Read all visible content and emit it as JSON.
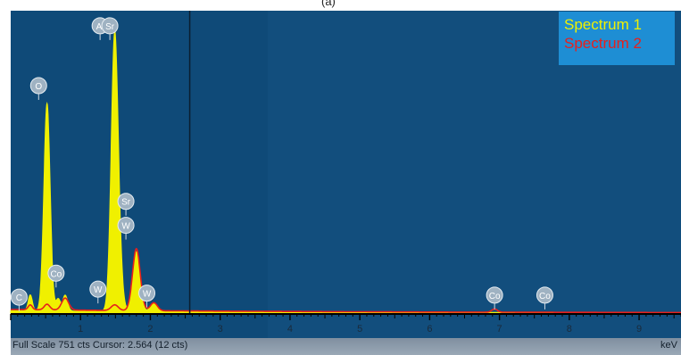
{
  "panel_label": "(a)",
  "status": {
    "full_scale_label": "Full Scale 751 cts Cursor: 2.564  (12 cts)",
    "x_unit": "keV"
  },
  "chart_data": {
    "type": "area",
    "title": "",
    "xlabel": "keV",
    "ylabel": "",
    "xlim": [
      0,
      9.6
    ],
    "ylim": [
      0,
      751
    ],
    "x_ticks": [
      1,
      2,
      3,
      4,
      5,
      6,
      7,
      8,
      9
    ],
    "grid": false,
    "legend_position": "top-right",
    "cursor_kev": 2.564,
    "background_color": "#0f4a78",
    "series": [
      {
        "name": "Spectrum 1",
        "color": "#f0f000",
        "peaks": [
          {
            "x": 0.28,
            "y": 40,
            "w": 0.03
          },
          {
            "x": 0.52,
            "y": 520,
            "w": 0.045
          },
          {
            "x": 0.68,
            "y": 30,
            "w": 0.03
          },
          {
            "x": 0.78,
            "y": 40,
            "w": 0.035
          },
          {
            "x": 1.49,
            "y": 700,
            "w": 0.05
          },
          {
            "x": 1.58,
            "y": 40,
            "w": 0.04
          },
          {
            "x": 1.8,
            "y": 150,
            "w": 0.05
          },
          {
            "x": 2.05,
            "y": 20,
            "w": 0.05
          }
        ],
        "baseline": 6
      },
      {
        "name": "Spectrum 2",
        "color": "#e8201c",
        "peaks": [
          {
            "x": 0.28,
            "y": 12,
            "w": 0.03
          },
          {
            "x": 0.52,
            "y": 14,
            "w": 0.04
          },
          {
            "x": 0.78,
            "y": 30,
            "w": 0.05
          },
          {
            "x": 1.49,
            "y": 14,
            "w": 0.05
          },
          {
            "x": 1.8,
            "y": 155,
            "w": 0.055
          },
          {
            "x": 2.05,
            "y": 20,
            "w": 0.05
          },
          {
            "x": 6.93,
            "y": 8,
            "w": 0.04
          }
        ],
        "baseline": 9
      }
    ],
    "annotations": [
      {
        "label": "C",
        "x": 0.12,
        "y": 40
      },
      {
        "label": "O",
        "x": 0.4,
        "y": 570
      },
      {
        "label": "Co",
        "x": 0.65,
        "y": 100
      },
      {
        "label": "Al",
        "x": 1.28,
        "y": 900
      },
      {
        "label": "Sr",
        "x": 1.42,
        "y": 850
      },
      {
        "label": "W",
        "x": 1.25,
        "y": 60
      },
      {
        "label": "Sr",
        "x": 1.65,
        "y": 280
      },
      {
        "label": "W",
        "x": 1.65,
        "y": 220
      },
      {
        "label": "W",
        "x": 1.95,
        "y": 50
      },
      {
        "label": "Co",
        "x": 6.93,
        "y": 45
      },
      {
        "label": "Co",
        "x": 7.65,
        "y": 45
      }
    ]
  }
}
